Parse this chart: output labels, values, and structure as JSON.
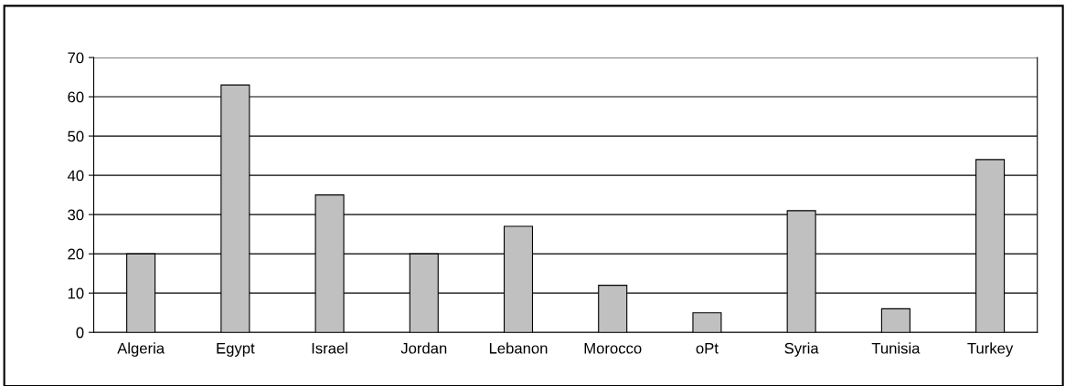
{
  "chart_data": {
    "type": "bar",
    "categories": [
      "Algeria",
      "Egypt",
      "Israel",
      "Jordan",
      "Lebanon",
      "Morocco",
      "oPt",
      "Syria",
      "Tunisia",
      "Turkey"
    ],
    "values": [
      20,
      63,
      35,
      20,
      27,
      12,
      5,
      31,
      6,
      44
    ],
    "color": "#c0c0c0",
    "ylim": [
      0,
      70
    ],
    "yticks": [
      0,
      10,
      20,
      30,
      40,
      50,
      60,
      70
    ],
    "grid": "y",
    "legend": false
  }
}
